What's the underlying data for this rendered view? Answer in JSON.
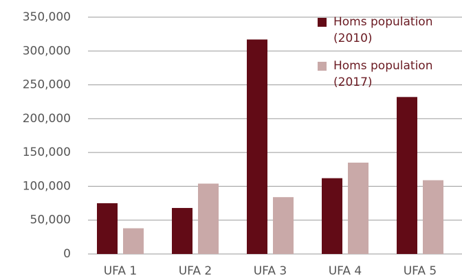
{
  "chart_data": {
    "type": "bar",
    "categories": [
      "UFA 1",
      "UFA 2",
      "UFA 3",
      "UFA 4",
      "UFA 5"
    ],
    "series": [
      {
        "name": "Homs population (2010)",
        "color": "#620b16",
        "values": [
          75000,
          68000,
          317000,
          112000,
          232000
        ]
      },
      {
        "name": "Homs population (2017)",
        "color": "#c9a9a8",
        "values": [
          38000,
          104000,
          84000,
          135000,
          109000
        ]
      }
    ],
    "ylim": [
      0,
      350000
    ],
    "yticks": [
      0,
      {
        "value": 50000,
        "label": "50,000"
      },
      {
        "value": 100000,
        "label": "100,000"
      },
      {
        "value": 150000,
        "label": "150,000"
      },
      {
        "value": 200000,
        "label": "200,000"
      },
      {
        "value": 250000,
        "label": "250,000"
      },
      {
        "value": 300000,
        "label": "300,000"
      },
      {
        "value": 350000,
        "label": "350,000"
      }
    ],
    "grid": true,
    "legend": "top-right"
  }
}
